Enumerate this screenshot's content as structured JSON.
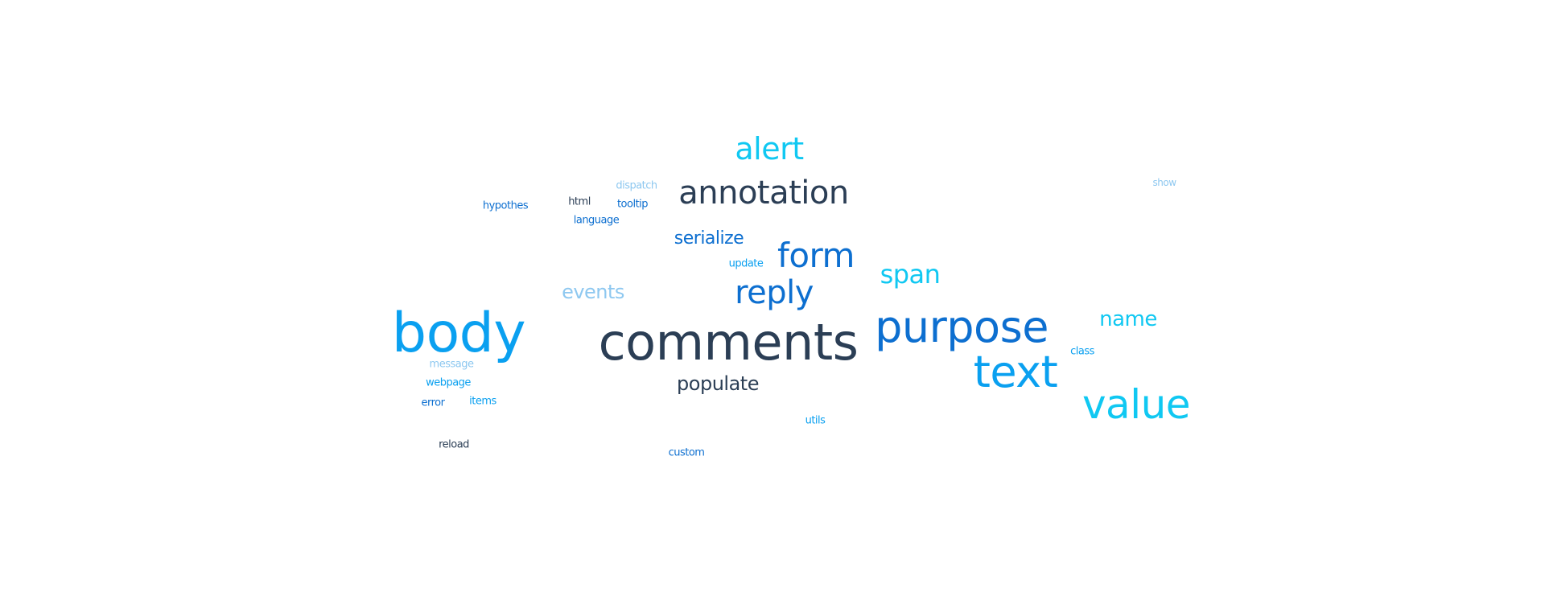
{
  "palette": {
    "navy": "#2b3e55",
    "blue": "#0d6fd0",
    "sky": "#0aa0f0",
    "cyan": "#10c8f2",
    "pale": "#8ec8f0"
  },
  "words": [
    {
      "id": "comments",
      "text": "comments",
      "tone": "navy",
      "weight": 1.0
    },
    {
      "id": "body",
      "text": "body",
      "tone": "sky",
      "weight": 0.98
    },
    {
      "id": "purpose",
      "text": "purpose",
      "tone": "blue",
      "weight": 0.92
    },
    {
      "id": "text",
      "text": "text",
      "tone": "sky",
      "weight": 0.82
    },
    {
      "id": "value",
      "text": "value",
      "tone": "cyan",
      "weight": 0.72
    },
    {
      "id": "annotation",
      "text": "annotation",
      "tone": "navy",
      "weight": 0.62
    },
    {
      "id": "form",
      "text": "form",
      "tone": "blue",
      "weight": 0.6
    },
    {
      "id": "reply",
      "text": "reply",
      "tone": "blue",
      "weight": 0.58
    },
    {
      "id": "alert",
      "text": "alert",
      "tone": "cyan",
      "weight": 0.56
    },
    {
      "id": "span",
      "text": "span",
      "tone": "cyan",
      "weight": 0.5
    },
    {
      "id": "name",
      "text": "name",
      "tone": "cyan",
      "weight": 0.4
    },
    {
      "id": "populate",
      "text": "populate",
      "tone": "navy",
      "weight": 0.4
    },
    {
      "id": "serialize",
      "text": "serialize",
      "tone": "blue",
      "weight": 0.36
    },
    {
      "id": "events",
      "text": "events",
      "tone": "pale",
      "weight": 0.36
    },
    {
      "id": "hypothes",
      "text": "hypothes",
      "tone": "blue",
      "weight": 0.1
    },
    {
      "id": "html",
      "text": "html",
      "tone": "navy",
      "weight": 0.1
    },
    {
      "id": "dispatch",
      "text": "dispatch",
      "tone": "pale",
      "weight": 0.1
    },
    {
      "id": "tooltip",
      "text": "tooltip",
      "tone": "blue",
      "weight": 0.1
    },
    {
      "id": "language",
      "text": "language",
      "tone": "blue",
      "weight": 0.1
    },
    {
      "id": "show",
      "text": "show",
      "tone": "pale",
      "weight": 0.1
    },
    {
      "id": "update",
      "text": "update",
      "tone": "sky",
      "weight": 0.1
    },
    {
      "id": "class",
      "text": "class",
      "tone": "sky",
      "weight": 0.1
    },
    {
      "id": "message",
      "text": "message",
      "tone": "pale",
      "weight": 0.1
    },
    {
      "id": "webpage",
      "text": "webpage",
      "tone": "sky",
      "weight": 0.1
    },
    {
      "id": "error",
      "text": "error",
      "tone": "blue",
      "weight": 0.1
    },
    {
      "id": "items",
      "text": "items",
      "tone": "sky",
      "weight": 0.1
    },
    {
      "id": "utils",
      "text": "utils",
      "tone": "sky",
      "weight": 0.1
    },
    {
      "id": "reload",
      "text": "reload",
      "tone": "navy",
      "weight": 0.1
    },
    {
      "id": "custom",
      "text": "custom",
      "tone": "blue",
      "weight": 0.1
    }
  ]
}
